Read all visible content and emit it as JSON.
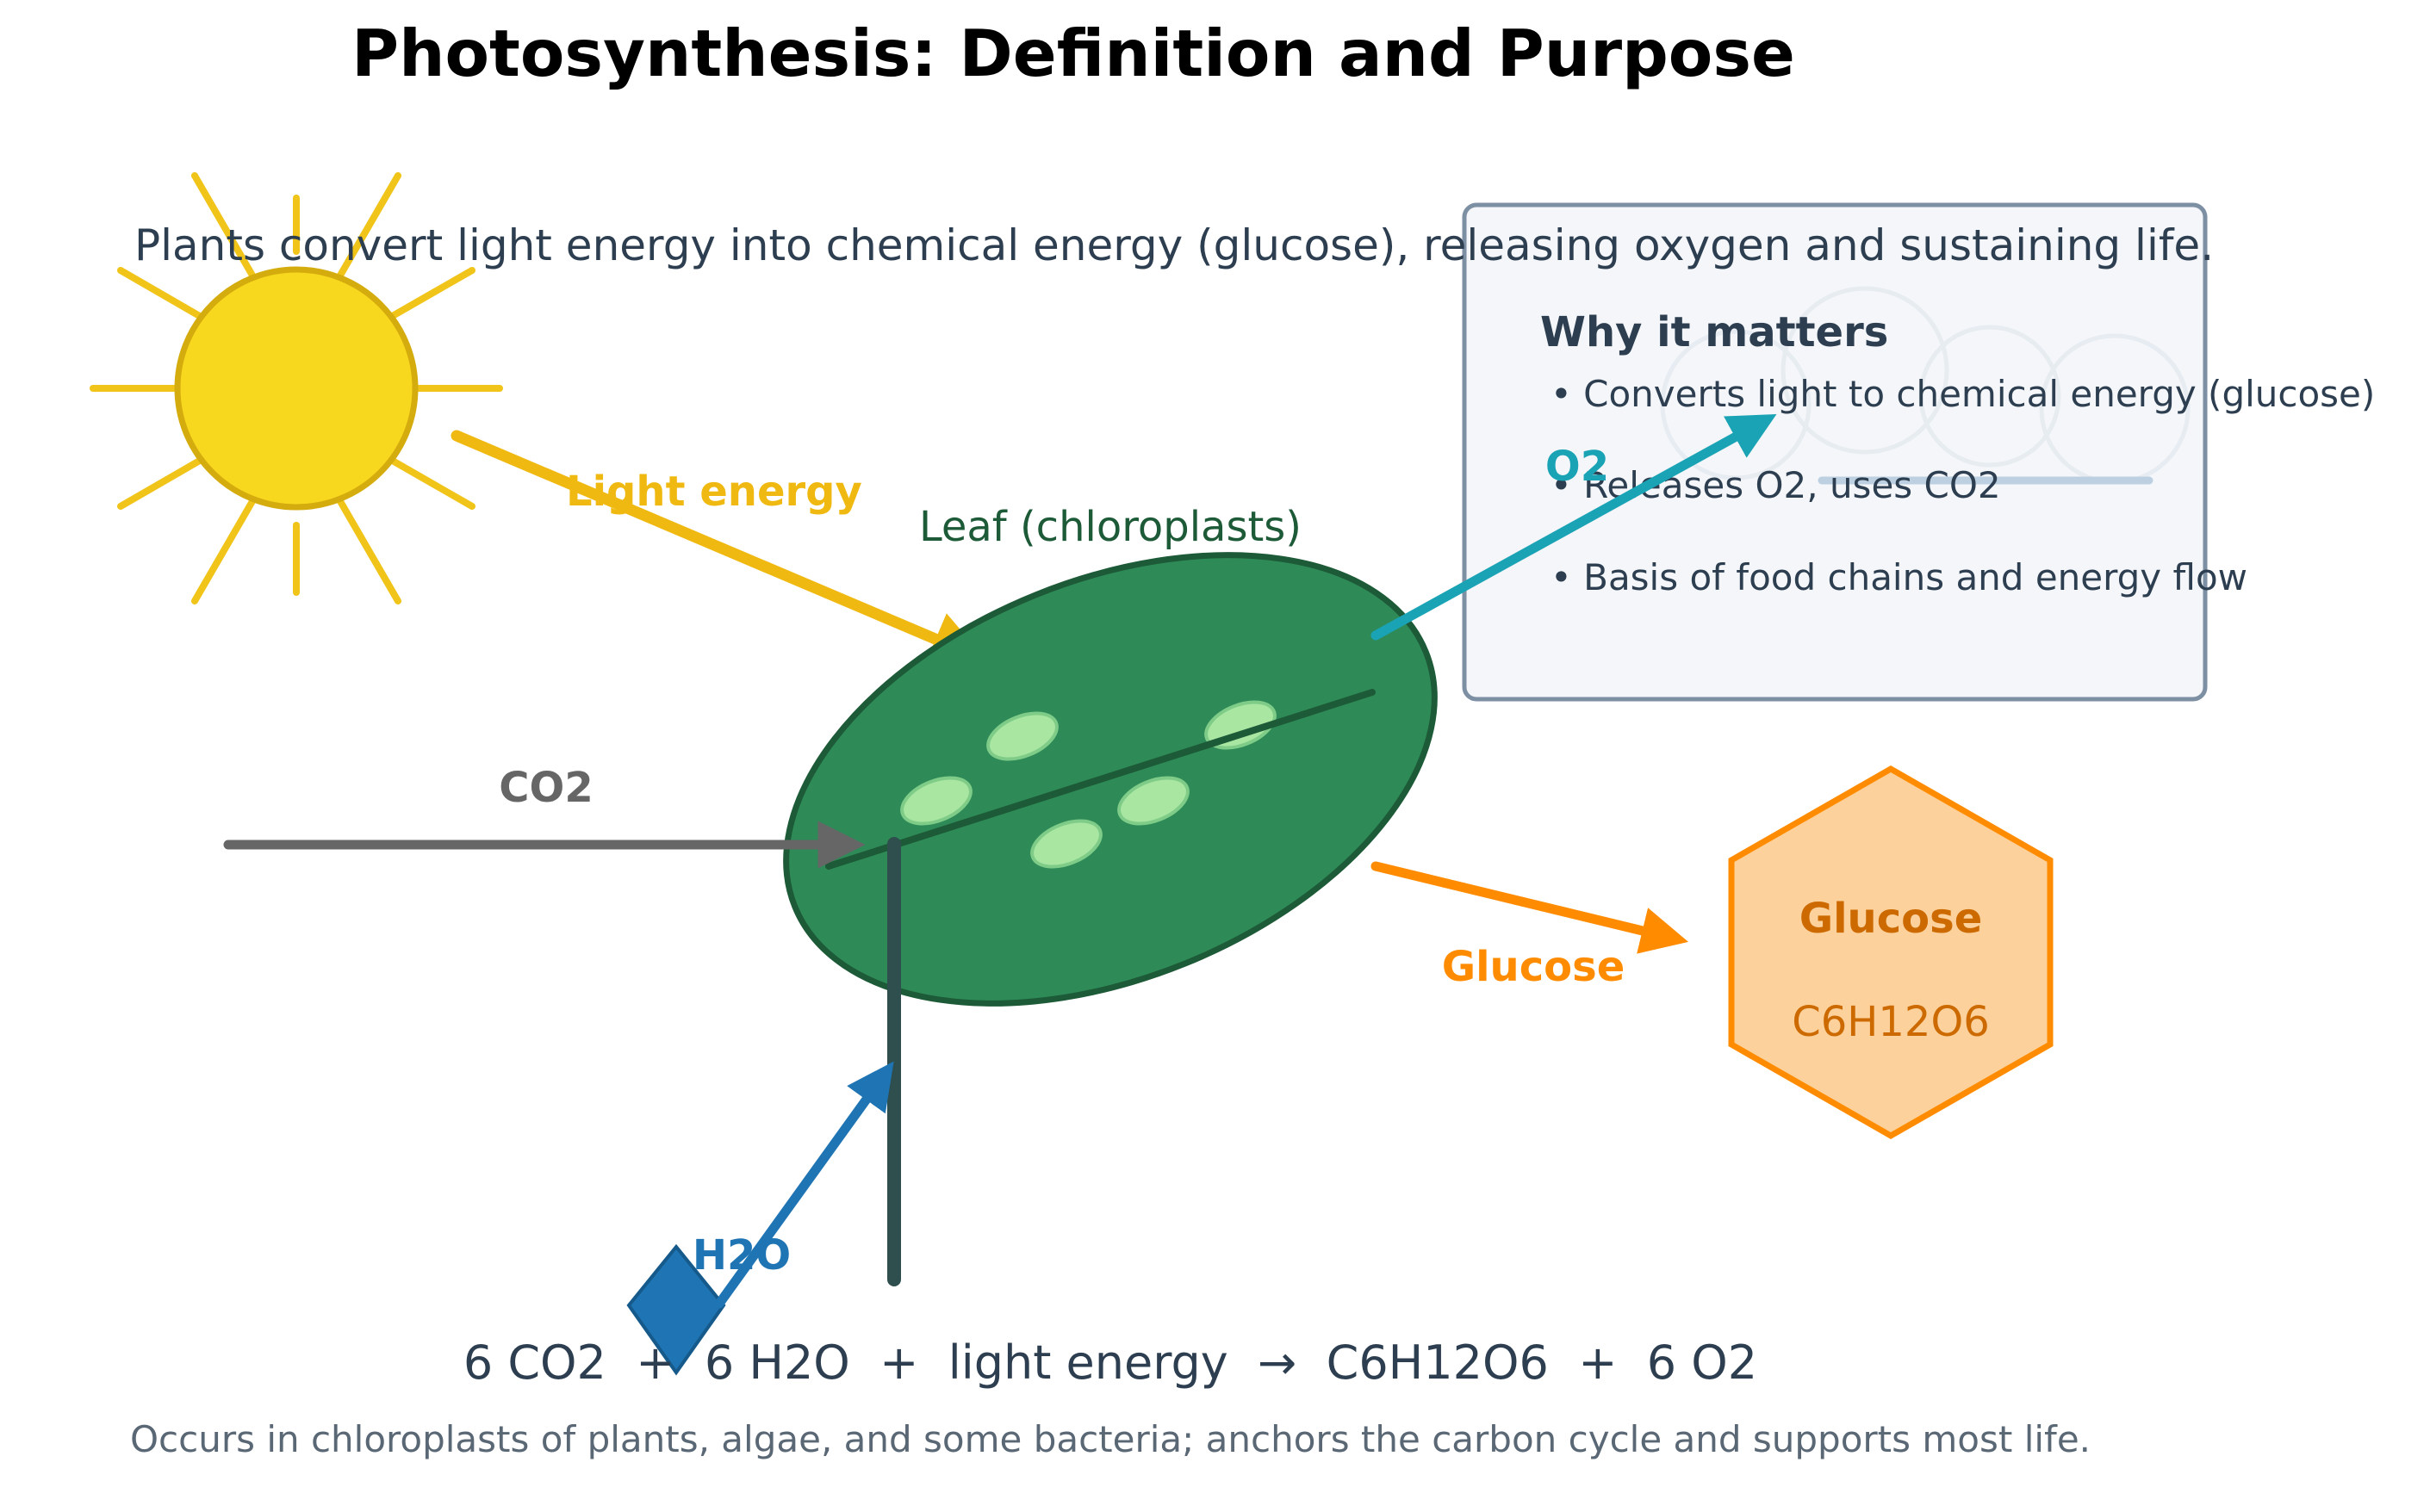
{
  "title": "Photosynthesis: Definition and Purpose",
  "subtitle": "Plants convert light energy into chemical energy (glucose), releasing oxygen and sustaining life.",
  "labels": {
    "light": "Light energy",
    "leaf": "Leaf (chloroplasts)",
    "co2": "CO2",
    "h2o": "H2O",
    "o2": "O2",
    "glucose_arrow": "Glucose"
  },
  "glucose_box": {
    "title": "Glucose",
    "formula": "C6H12O6"
  },
  "panel": {
    "title": "Why it matters",
    "items": [
      "• Converts light to chemical energy (glucose)",
      "• Releases O2, uses CO2",
      "• Basis of food chains and energy flow"
    ]
  },
  "equation": "6 CO2  +  6 H2O  +  light energy  →  C6H12O6  +  6 O2",
  "footnote": "Occurs in chloroplasts of plants, algae, and some bacteria; anchors the carbon cycle and supports most life.",
  "colors": {
    "sun": "#f8d71f",
    "light": "#f0b911",
    "leaf": "#2e8b57",
    "leaf_dark": "#1d5a37",
    "chloroplast": "#a8e6a1",
    "co2": "#666666",
    "h2o": "#1f74b4",
    "o2": "#1aa3b5",
    "glucose": "#ff8c00",
    "glucose_fill": "#fdd19b",
    "stem": "#2f4f4f"
  }
}
